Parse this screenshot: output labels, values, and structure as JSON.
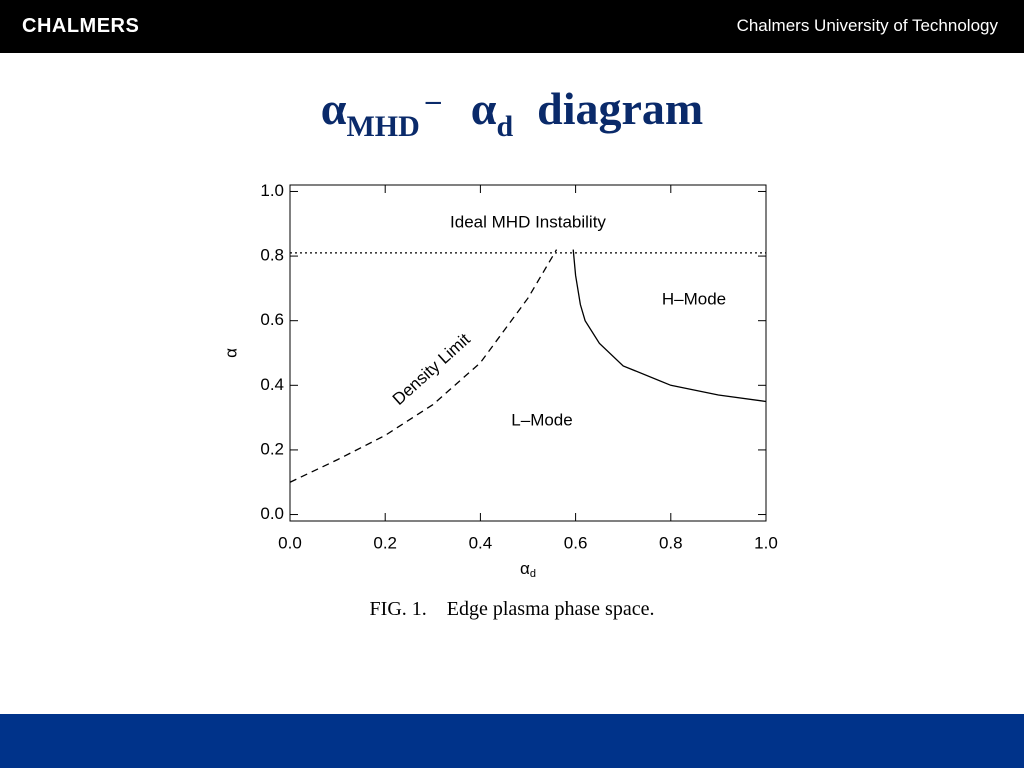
{
  "header": {
    "logo": "CHALMERS",
    "institution": "Chalmers University of Technology"
  },
  "title": [
    {
      "text": "α"
    },
    {
      "text": "MHD",
      "sub": true
    },
    {
      "text": "–",
      "sup": true
    },
    {
      "text": "α"
    },
    {
      "text": "d",
      "sub": true
    },
    {
      "text": "diagram"
    }
  ],
  "chart_data": {
    "type": "line",
    "x_label": {
      "text": "α",
      "sub": "d"
    },
    "y_label": "α",
    "xlim": [
      0,
      1
    ],
    "ylim": [
      -0.02,
      1.02
    ],
    "xticks": [
      {
        "value": 0,
        "label": "0.0"
      },
      0.2,
      0.4,
      0.6,
      0.8,
      {
        "value": 1,
        "label": "1.0"
      }
    ],
    "yticks": [
      {
        "value": 0,
        "label": "0.0"
      },
      0.2,
      0.4,
      0.6,
      0.8,
      {
        "value": 1,
        "label": "1.0"
      }
    ],
    "series": [
      {
        "name": "Density Limit",
        "color": "#000000",
        "dash": "dashed",
        "x": [
          0,
          0.1,
          0.2,
          0.3,
          0.4,
          0.5,
          0.56
        ],
        "values": [
          0.1,
          0.17,
          0.245,
          0.34,
          0.47,
          0.67,
          0.82
        ]
      },
      {
        "color": "#000000",
        "dash": "solid",
        "x": [
          0.595,
          0.6,
          0.61,
          0.62,
          0.65,
          0.7,
          0.8,
          0.9,
          1.0
        ],
        "values": [
          0.82,
          0.74,
          0.65,
          0.6,
          0.53,
          0.46,
          0.4,
          0.37,
          0.35
        ]
      },
      {
        "color": "#000000",
        "dash": "dotted",
        "x": [
          0,
          1
        ],
        "values": [
          0.81,
          0.81
        ]
      }
    ],
    "annotations": [
      "Ideal MHD Instability",
      "H–Mode",
      "L–Mode"
    ]
  },
  "caption": "FIG. 1.    Edge plasma phase space."
}
